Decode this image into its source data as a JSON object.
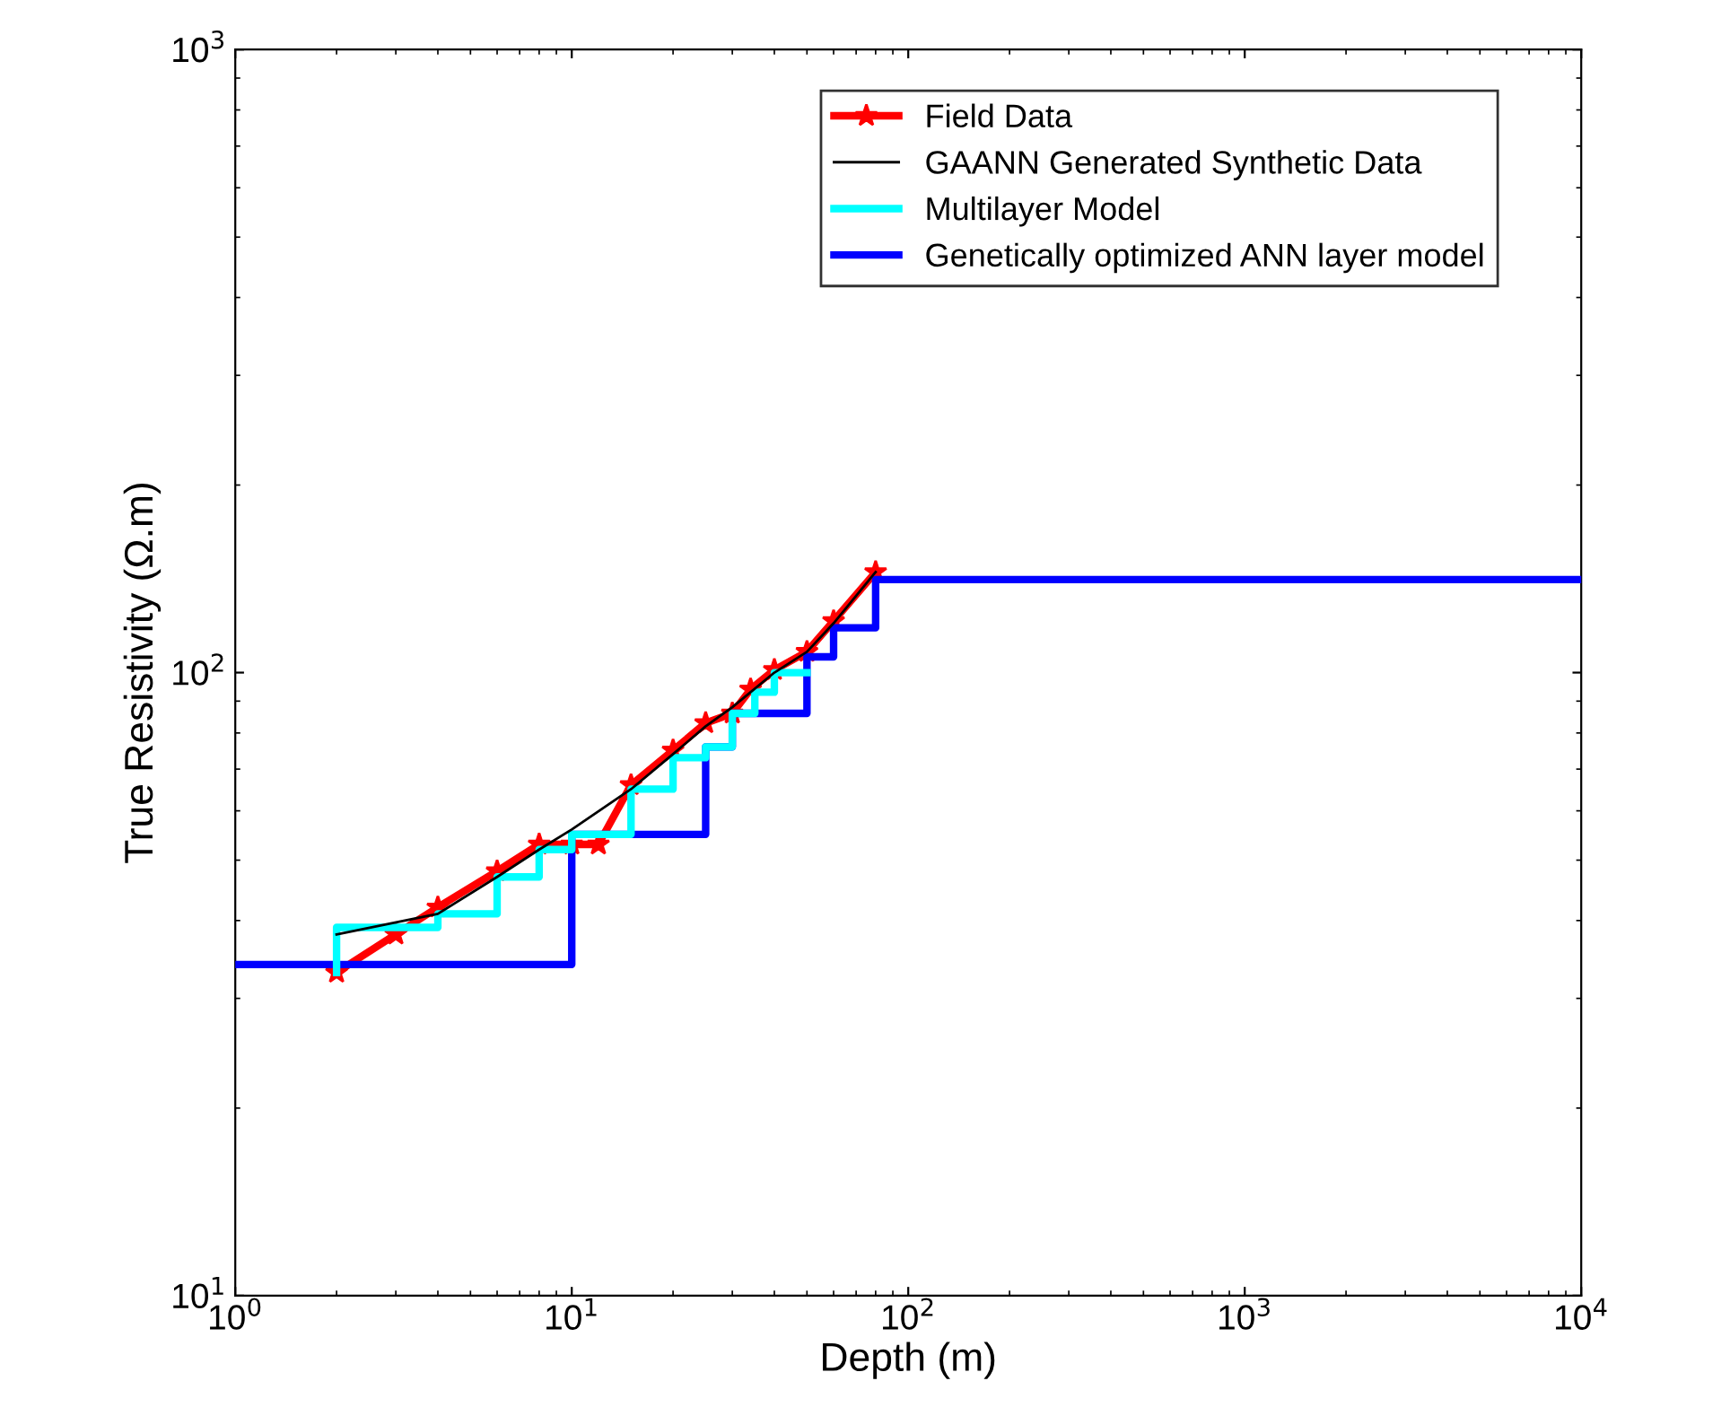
{
  "chart_data": {
    "type": "line",
    "xlabel": "Depth (m)",
    "ylabel": "True Resistivity (Ω.m)",
    "log": "xy",
    "grid": false,
    "legend": "top right",
    "xlim": [
      1,
      10000
    ],
    "xticks": [
      {
        "value": 1,
        "label": "10$^{0}$"
      },
      {
        "value": 10,
        "label": "10$^{1}$"
      },
      {
        "value": 100,
        "label": "10$^{2}$"
      },
      {
        "value": 1000,
        "label": "10$^{3}$"
      },
      {
        "value": 10000,
        "label": "10$^{4}$"
      }
    ],
    "ylim": [
      10,
      1000
    ],
    "yticks": [
      {
        "value": 10,
        "label": "10$^{1}$"
      },
      {
        "value": 100,
        "label": "10$^{2}$"
      },
      {
        "value": 1000,
        "label": "10$^{3}$"
      }
    ],
    "series": [
      {
        "name": "Field Data",
        "color": "#ff0000",
        "marker": "star",
        "x": [
          2,
          3,
          4,
          6,
          8,
          10,
          12,
          15,
          20,
          25,
          30,
          34,
          40,
          50,
          60,
          80
        ],
        "values": [
          33,
          38,
          42,
          48,
          53,
          53,
          53,
          66,
          75,
          83,
          86,
          94,
          101,
          108,
          121,
          145
        ]
      },
      {
        "name": "GAANN Generated Synthetic Data",
        "color": "#000000",
        "x": [
          2,
          4,
          6,
          8,
          10,
          15,
          20,
          25,
          30,
          40,
          50,
          60,
          80
        ],
        "values": [
          38,
          41,
          47,
          52,
          56,
          65,
          74,
          82,
          88,
          100,
          108,
          120,
          145
        ]
      },
      {
        "name": "Multilayer Model",
        "type": "step",
        "color": "#00ffff",
        "x": [
          2,
          2,
          4,
          6,
          8,
          10,
          15,
          20,
          25,
          30,
          35,
          40,
          50
        ],
        "values": [
          33,
          39,
          41,
          47,
          52,
          55,
          65,
          73,
          76,
          86,
          93,
          100,
          100
        ]
      },
      {
        "name": "Genetically optimized ANN layer model",
        "type": "step",
        "color": "#0000ff",
        "x": [
          1,
          10,
          25,
          30,
          50,
          60,
          80,
          10000
        ],
        "values": [
          34,
          55,
          76,
          86,
          106,
          118,
          141,
          141
        ]
      }
    ]
  }
}
